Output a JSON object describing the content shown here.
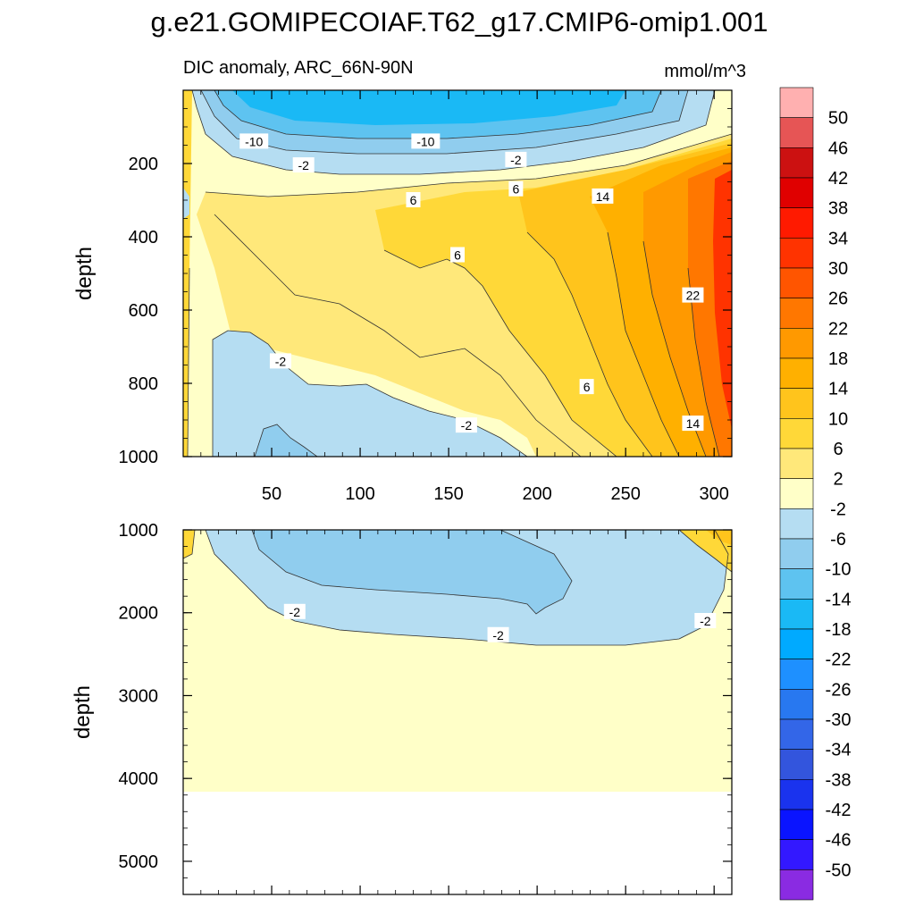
{
  "chart_data": {
    "type": "heatmap",
    "title": "g.e21.GOMIPECOIAF.T62_g17.CMIP6-omip1.001",
    "subtitle": "DIC anomaly, ARC_66N-90N",
    "units": "mmol/m^3",
    "ylabel": "depth",
    "xlabel": "",
    "xlim": [
      0,
      310
    ],
    "x_ticks": [
      "50",
      "100",
      "150",
      "200",
      "250",
      "300"
    ],
    "panels": [
      {
        "name": "upper",
        "ylim": [
          0,
          1000
        ],
        "y_ticks": [
          "200",
          "400",
          "600",
          "800",
          "1000"
        ],
        "contour_labels": [
          {
            "text": "-10",
            "x": 40,
            "y": 140
          },
          {
            "text": "-10",
            "x": 137,
            "y": 140
          },
          {
            "text": "-2",
            "x": 68,
            "y": 205
          },
          {
            "text": "-2",
            "x": 188,
            "y": 190
          },
          {
            "text": "6",
            "x": 130,
            "y": 300
          },
          {
            "text": "6",
            "x": 188,
            "y": 270
          },
          {
            "text": "14",
            "x": 237,
            "y": 290
          },
          {
            "text": "6",
            "x": 155,
            "y": 450
          },
          {
            "text": "22",
            "x": 288,
            "y": 560
          },
          {
            "text": "-2",
            "x": 55,
            "y": 740
          },
          {
            "text": "6",
            "x": 228,
            "y": 810
          },
          {
            "text": "-2",
            "x": 160,
            "y": 915
          },
          {
            "text": "14",
            "x": 288,
            "y": 910
          }
        ]
      },
      {
        "name": "lower",
        "ylim": [
          1000,
          5400
        ],
        "y_ticks": [
          "1000",
          "2000",
          "3000",
          "4000",
          "5000"
        ],
        "data_bottom_depth": 4120,
        "contour_labels": [
          {
            "text": "-2",
            "x": 63,
            "y": 1990
          },
          {
            "text": "-2",
            "x": 178,
            "y": 2270
          },
          {
            "text": "-2",
            "x": 295,
            "y": 2100
          }
        ]
      }
    ],
    "colorbar": {
      "levels": [
        "50",
        "46",
        "42",
        "38",
        "34",
        "30",
        "26",
        "22",
        "18",
        "14",
        "10",
        "6",
        "2",
        "-2",
        "-6",
        "-10",
        "-14",
        "-18",
        "-22",
        "-26",
        "-30",
        "-34",
        "-38",
        "-42",
        "-46",
        "-50"
      ],
      "colors": [
        "#ffb0b0",
        "#e65555",
        "#cc1111",
        "#e00000",
        "#ff1a00",
        "#ff3300",
        "#ff5500",
        "#ff7700",
        "#ff9900",
        "#ffb000",
        "#ffc41c",
        "#ffd838",
        "#ffe87a",
        "#ffffc8",
        "#b5ddf2",
        "#90cdee",
        "#5ec3f0",
        "#1ab9f5",
        "#00aaff",
        "#1e90ff",
        "#2878f0",
        "#3366e8",
        "#3355dd",
        "#1a33ee",
        "#0a14ff",
        "#3318ff",
        "#8a2be2"
      ]
    }
  }
}
